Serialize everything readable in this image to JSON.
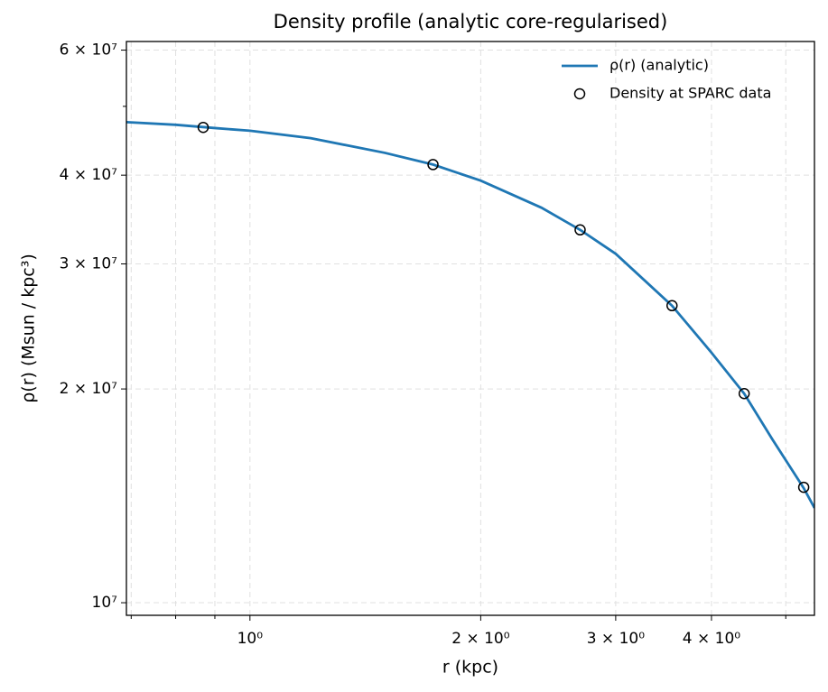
{
  "chart_data": {
    "type": "line",
    "title": "Density profile (analytic core-regularised)",
    "xlabel": "r (kpc)",
    "ylabel": "ρ(r) (Msun / kpc³)",
    "xscale": "log",
    "yscale": "log",
    "xlim": [
      0.69,
      5.45
    ],
    "ylim": [
      9600000,
      61700000
    ],
    "xticks": [
      {
        "value": 1,
        "label": "10⁰"
      },
      {
        "value": 2,
        "label": "2 × 10⁰"
      },
      {
        "value": 3,
        "label": "3 × 10⁰"
      },
      {
        "value": 4,
        "label": "4 × 10⁰"
      }
    ],
    "xminor": [
      0.7,
      0.8,
      0.9,
      5
    ],
    "yticks": [
      {
        "value": 10000000,
        "label": "10⁷"
      },
      {
        "value": 20000000,
        "label": "2 × 10⁷"
      },
      {
        "value": 30000000,
        "label": "3 × 10⁷"
      },
      {
        "value": 40000000,
        "label": "4 × 10⁷"
      },
      {
        "value": 60000000,
        "label": "6 × 10⁷"
      }
    ],
    "yminor": [
      50000000
    ],
    "grid": true,
    "legend": "upper right",
    "series": [
      {
        "name": "ρ(r) (analytic)",
        "type": "line",
        "color": "#1f77b4",
        "x": [
          0.69,
          0.8,
          0.9,
          1.0,
          1.2,
          1.5,
          1.733,
          2.0,
          2.4,
          2.696,
          3.0,
          3.553,
          4.0,
          4.413,
          4.8,
          5.277,
          5.45
        ],
        "values": [
          47500000,
          47100000,
          46600000,
          46200000,
          45100000,
          43000000,
          41400000,
          39300000,
          36000000,
          33500000,
          31000000,
          26200000,
          22500000,
          19700000,
          17000000,
          14500000,
          13600000
        ]
      },
      {
        "name": "Density at SPARC data",
        "type": "scatter",
        "color": "#000000",
        "x": [
          0.869,
          1.733,
          2.696,
          3.553,
          4.413,
          5.277
        ],
        "values": [
          46700000,
          41400000,
          33500000,
          26200000,
          19700000,
          14540000
        ]
      }
    ]
  }
}
